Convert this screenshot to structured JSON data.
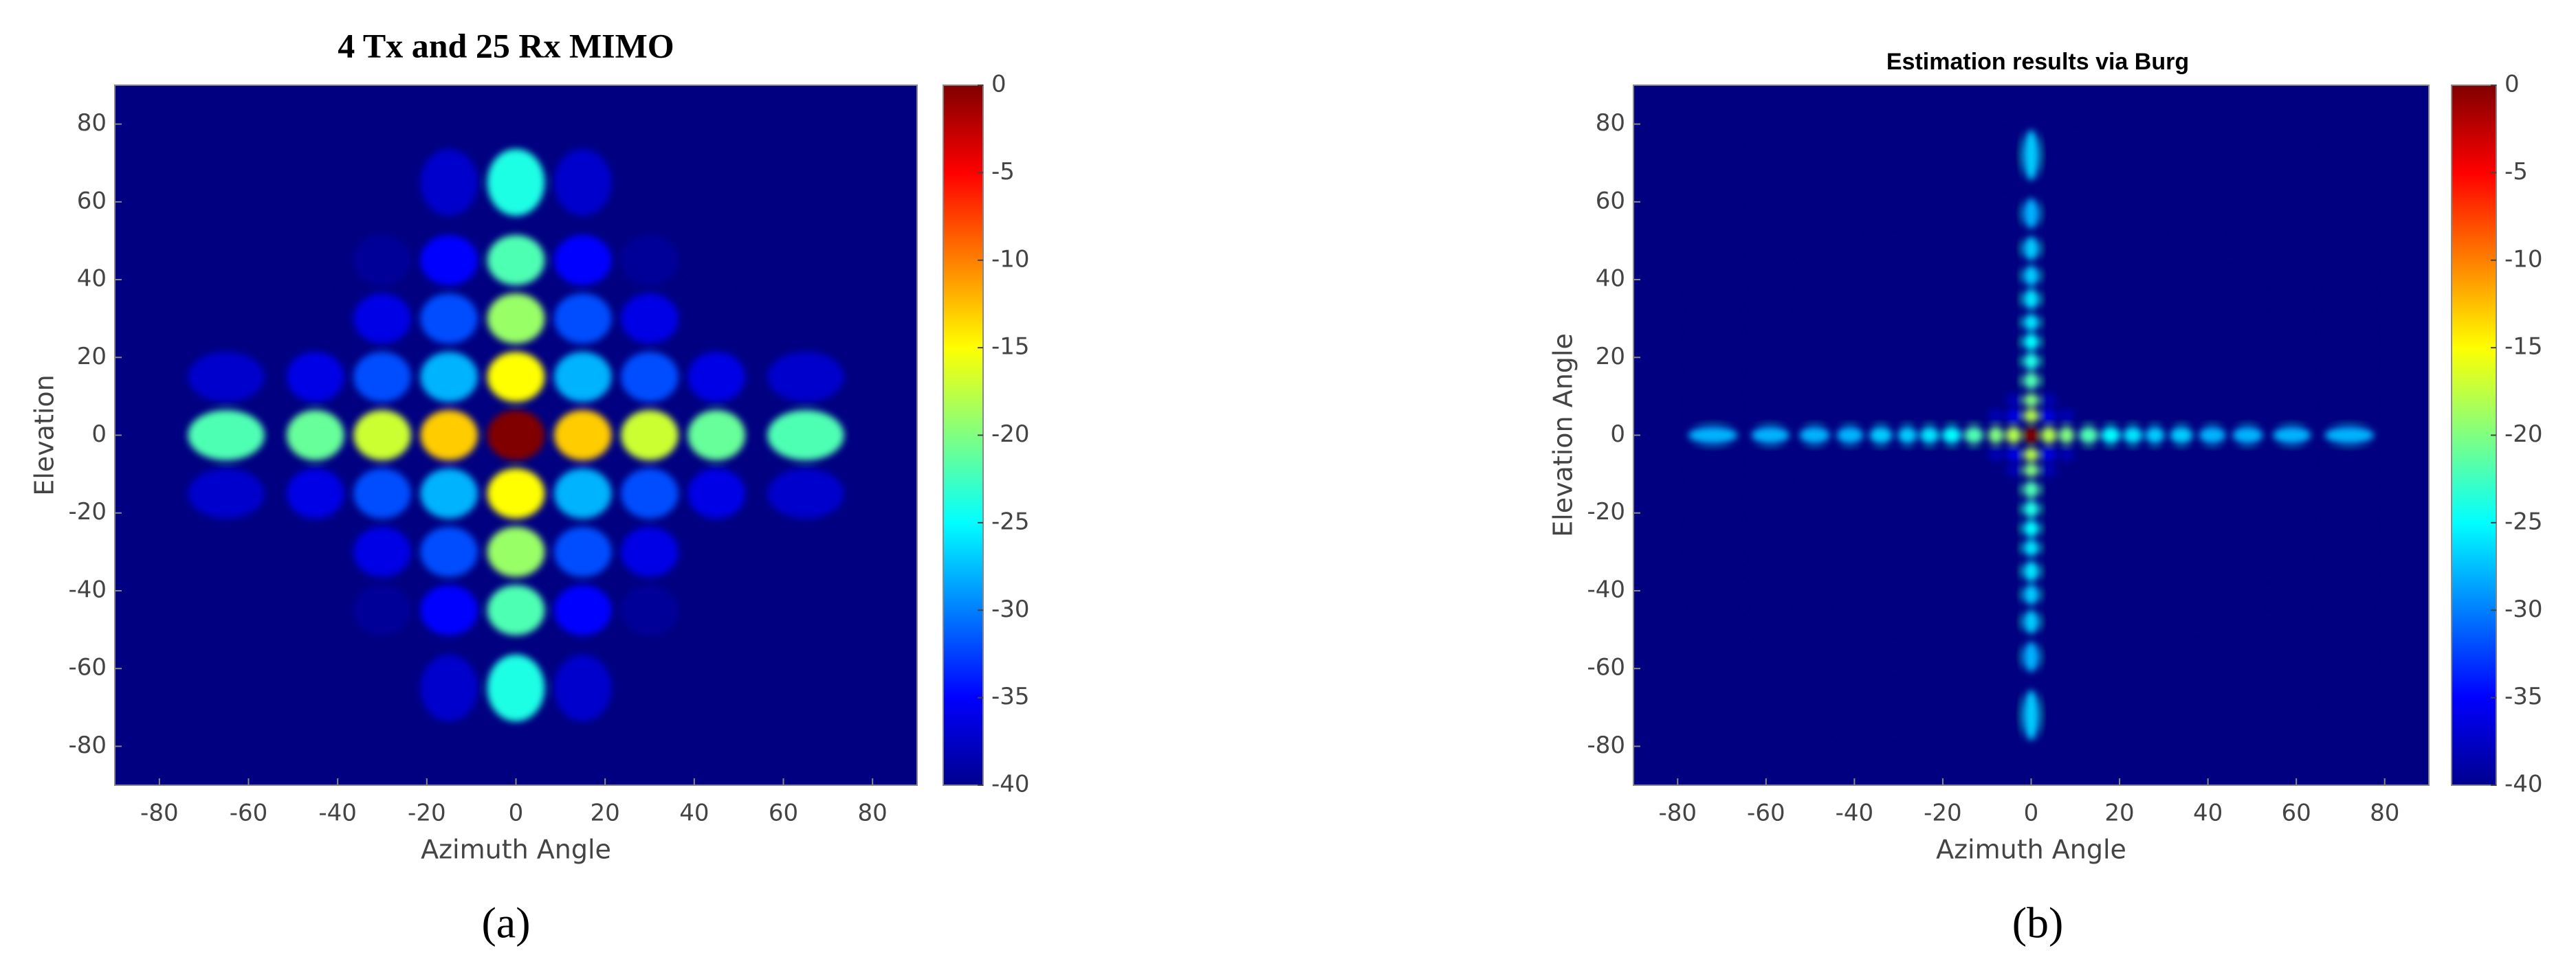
{
  "chart_data": [
    {
      "type": "heatmap",
      "title": "4 Tx and 25 Rx MIMO",
      "caption": "(a)",
      "xlabel": "Azimuth Angle",
      "ylabel": "Elevation",
      "colormap": "jet",
      "xlim": [
        -90,
        90
      ],
      "ylim": [
        -90,
        90
      ],
      "xticks": [
        -80,
        -60,
        -40,
        -20,
        0,
        20,
        40,
        60,
        80
      ],
      "yticks": [
        -80,
        -60,
        -40,
        -20,
        0,
        20,
        40,
        60,
        80
      ],
      "clim": [
        -40,
        0
      ],
      "cticks": [
        0,
        -5,
        -10,
        -15,
        -20,
        -25,
        -30,
        -35,
        -40
      ],
      "x": [
        -65,
        -45,
        -30,
        -15,
        0,
        15,
        30,
        45,
        65
      ],
      "y": [
        -65,
        -45,
        -30,
        -15,
        0,
        15,
        30,
        45,
        65
      ],
      "values": [
        [
          -40,
          -40,
          -40,
          -37,
          -24,
          -37,
          -40,
          -40,
          -40
        ],
        [
          -40,
          -40,
          -39,
          -35,
          -22,
          -35,
          -39,
          -40,
          -40
        ],
        [
          -40,
          -40,
          -36,
          -32,
          -19,
          -32,
          -36,
          -40,
          -40
        ],
        [
          -37,
          -36,
          -32,
          -28,
          -15,
          -28,
          -32,
          -36,
          -37
        ],
        [
          -22,
          -21,
          -17,
          -13,
          0,
          -13,
          -17,
          -21,
          -22
        ],
        [
          -37,
          -36,
          -32,
          -28,
          -15,
          -28,
          -32,
          -36,
          -37
        ],
        [
          -40,
          -40,
          -36,
          -32,
          -19,
          -32,
          -36,
          -40,
          -40
        ],
        [
          -40,
          -40,
          -39,
          -35,
          -22,
          -35,
          -39,
          -40,
          -40
        ],
        [
          -40,
          -40,
          -40,
          -37,
          -24,
          -37,
          -40,
          -40,
          -40
        ]
      ]
    },
    {
      "type": "heatmap",
      "title": "Estimation results via Burg",
      "caption": "(b)",
      "xlabel": "Azimuth Angle",
      "ylabel": "Elevation Angle",
      "colormap": "jet",
      "xlim": [
        -90,
        90
      ],
      "ylim": [
        -90,
        90
      ],
      "xticks": [
        -80,
        -60,
        -40,
        -20,
        0,
        20,
        40,
        60,
        80
      ],
      "yticks": [
        -80,
        -60,
        -40,
        -20,
        0,
        20,
        40,
        60,
        80
      ],
      "clim": [
        -40,
        0
      ],
      "cticks": [
        0,
        -5,
        -10,
        -15,
        -20,
        -25,
        -30,
        -35,
        -40
      ],
      "x": [
        -72,
        -59,
        -49,
        -41,
        -34,
        -28,
        -23,
        -18,
        -13,
        -8,
        -4,
        0,
        4,
        8,
        13,
        18,
        23,
        28,
        34,
        41,
        49,
        59,
        72
      ],
      "y": [
        -72,
        -57,
        -48,
        -41,
        -35,
        -29,
        -24,
        -19,
        -14,
        -9,
        -5,
        0,
        5,
        9,
        14,
        19,
        24,
        29,
        35,
        41,
        48,
        57,
        72
      ],
      "values": [
        [
          -40,
          -40,
          -40,
          -40,
          -40,
          -40,
          -40,
          -40,
          -40,
          -40,
          -40,
          -27,
          -40,
          -40,
          -40,
          -40,
          -40,
          -40,
          -40,
          -40,
          -40,
          -40,
          -40
        ],
        [
          -40,
          -40,
          -40,
          -40,
          -40,
          -40,
          -40,
          -40,
          -40,
          -40,
          -40,
          -28,
          -40,
          -40,
          -40,
          -40,
          -40,
          -40,
          -40,
          -40,
          -40,
          -40,
          -40
        ],
        [
          -40,
          -40,
          -40,
          -40,
          -40,
          -40,
          -40,
          -40,
          -40,
          -40,
          -40,
          -27,
          -40,
          -40,
          -40,
          -40,
          -40,
          -40,
          -40,
          -40,
          -40,
          -40,
          -40
        ],
        [
          -40,
          -40,
          -40,
          -40,
          -40,
          -40,
          -40,
          -40,
          -40,
          -40,
          -40,
          -27,
          -40,
          -40,
          -40,
          -40,
          -40,
          -40,
          -40,
          -40,
          -40,
          -40,
          -40
        ],
        [
          -40,
          -40,
          -40,
          -40,
          -40,
          -40,
          -40,
          -40,
          -40,
          -40,
          -40,
          -26,
          -40,
          -40,
          -40,
          -40,
          -40,
          -40,
          -40,
          -40,
          -40,
          -40,
          -40
        ],
        [
          -40,
          -40,
          -40,
          -40,
          -40,
          -40,
          -40,
          -40,
          -40,
          -40,
          -40,
          -26,
          -40,
          -40,
          -40,
          -40,
          -40,
          -40,
          -40,
          -40,
          -40,
          -40,
          -40
        ],
        [
          -40,
          -40,
          -40,
          -40,
          -40,
          -40,
          -40,
          -40,
          -40,
          -40,
          -40,
          -25,
          -40,
          -40,
          -40,
          -40,
          -40,
          -40,
          -40,
          -40,
          -40,
          -40,
          -40
        ],
        [
          -40,
          -40,
          -40,
          -40,
          -40,
          -40,
          -40,
          -40,
          -40,
          -40,
          -40,
          -24,
          -40,
          -40,
          -40,
          -40,
          -40,
          -40,
          -40,
          -40,
          -40,
          -40,
          -40
        ],
        [
          -40,
          -40,
          -40,
          -40,
          -40,
          -40,
          -40,
          -40,
          -40,
          -40,
          -40,
          -22,
          -40,
          -40,
          -40,
          -40,
          -40,
          -40,
          -40,
          -40,
          -40,
          -40,
          -40
        ],
        [
          -40,
          -40,
          -40,
          -40,
          -40,
          -40,
          -40,
          -40,
          -40,
          -40,
          -38,
          -20,
          -38,
          -40,
          -40,
          -40,
          -40,
          -40,
          -40,
          -40,
          -40,
          -40,
          -40
        ],
        [
          -40,
          -40,
          -40,
          -40,
          -40,
          -40,
          -40,
          -40,
          -40,
          -38,
          -36,
          -18,
          -36,
          -38,
          -40,
          -40,
          -40,
          -40,
          -40,
          -40,
          -40,
          -40,
          -40
        ],
        [
          -28,
          -28,
          -28,
          -28,
          -27,
          -27,
          -26,
          -25,
          -22,
          -20,
          -18,
          0,
          -18,
          -20,
          -22,
          -25,
          -26,
          -27,
          -27,
          -28,
          -28,
          -28,
          -28
        ],
        [
          -40,
          -40,
          -40,
          -40,
          -40,
          -40,
          -40,
          -40,
          -40,
          -38,
          -36,
          -18,
          -36,
          -38,
          -40,
          -40,
          -40,
          -40,
          -40,
          -40,
          -40,
          -40,
          -40
        ],
        [
          -40,
          -40,
          -40,
          -40,
          -40,
          -40,
          -40,
          -40,
          -40,
          -40,
          -38,
          -20,
          -38,
          -40,
          -40,
          -40,
          -40,
          -40,
          -40,
          -40,
          -40,
          -40,
          -40
        ],
        [
          -40,
          -40,
          -40,
          -40,
          -40,
          -40,
          -40,
          -40,
          -40,
          -40,
          -40,
          -22,
          -40,
          -40,
          -40,
          -40,
          -40,
          -40,
          -40,
          -40,
          -40,
          -40,
          -40
        ],
        [
          -40,
          -40,
          -40,
          -40,
          -40,
          -40,
          -40,
          -40,
          -40,
          -40,
          -40,
          -24,
          -40,
          -40,
          -40,
          -40,
          -40,
          -40,
          -40,
          -40,
          -40,
          -40,
          -40
        ],
        [
          -40,
          -40,
          -40,
          -40,
          -40,
          -40,
          -40,
          -40,
          -40,
          -40,
          -40,
          -25,
          -40,
          -40,
          -40,
          -40,
          -40,
          -40,
          -40,
          -40,
          -40,
          -40,
          -40
        ],
        [
          -40,
          -40,
          -40,
          -40,
          -40,
          -40,
          -40,
          -40,
          -40,
          -40,
          -40,
          -26,
          -40,
          -40,
          -40,
          -40,
          -40,
          -40,
          -40,
          -40,
          -40,
          -40,
          -40
        ],
        [
          -40,
          -40,
          -40,
          -40,
          -40,
          -40,
          -40,
          -40,
          -40,
          -40,
          -40,
          -26,
          -40,
          -40,
          -40,
          -40,
          -40,
          -40,
          -40,
          -40,
          -40,
          -40,
          -40
        ],
        [
          -40,
          -40,
          -40,
          -40,
          -40,
          -40,
          -40,
          -40,
          -40,
          -40,
          -40,
          -27,
          -40,
          -40,
          -40,
          -40,
          -40,
          -40,
          -40,
          -40,
          -40,
          -40,
          -40
        ],
        [
          -40,
          -40,
          -40,
          -40,
          -40,
          -40,
          -40,
          -40,
          -40,
          -40,
          -40,
          -27,
          -40,
          -40,
          -40,
          -40,
          -40,
          -40,
          -40,
          -40,
          -40,
          -40,
          -40
        ],
        [
          -40,
          -40,
          -40,
          -40,
          -40,
          -40,
          -40,
          -40,
          -40,
          -40,
          -40,
          -28,
          -40,
          -40,
          -40,
          -40,
          -40,
          -40,
          -40,
          -40,
          -40,
          -40,
          -40
        ],
        [
          -40,
          -40,
          -40,
          -40,
          -40,
          -40,
          -40,
          -40,
          -40,
          -40,
          -40,
          -27,
          -40,
          -40,
          -40,
          -40,
          -40,
          -40,
          -40,
          -40,
          -40,
          -40,
          -40
        ]
      ]
    }
  ]
}
